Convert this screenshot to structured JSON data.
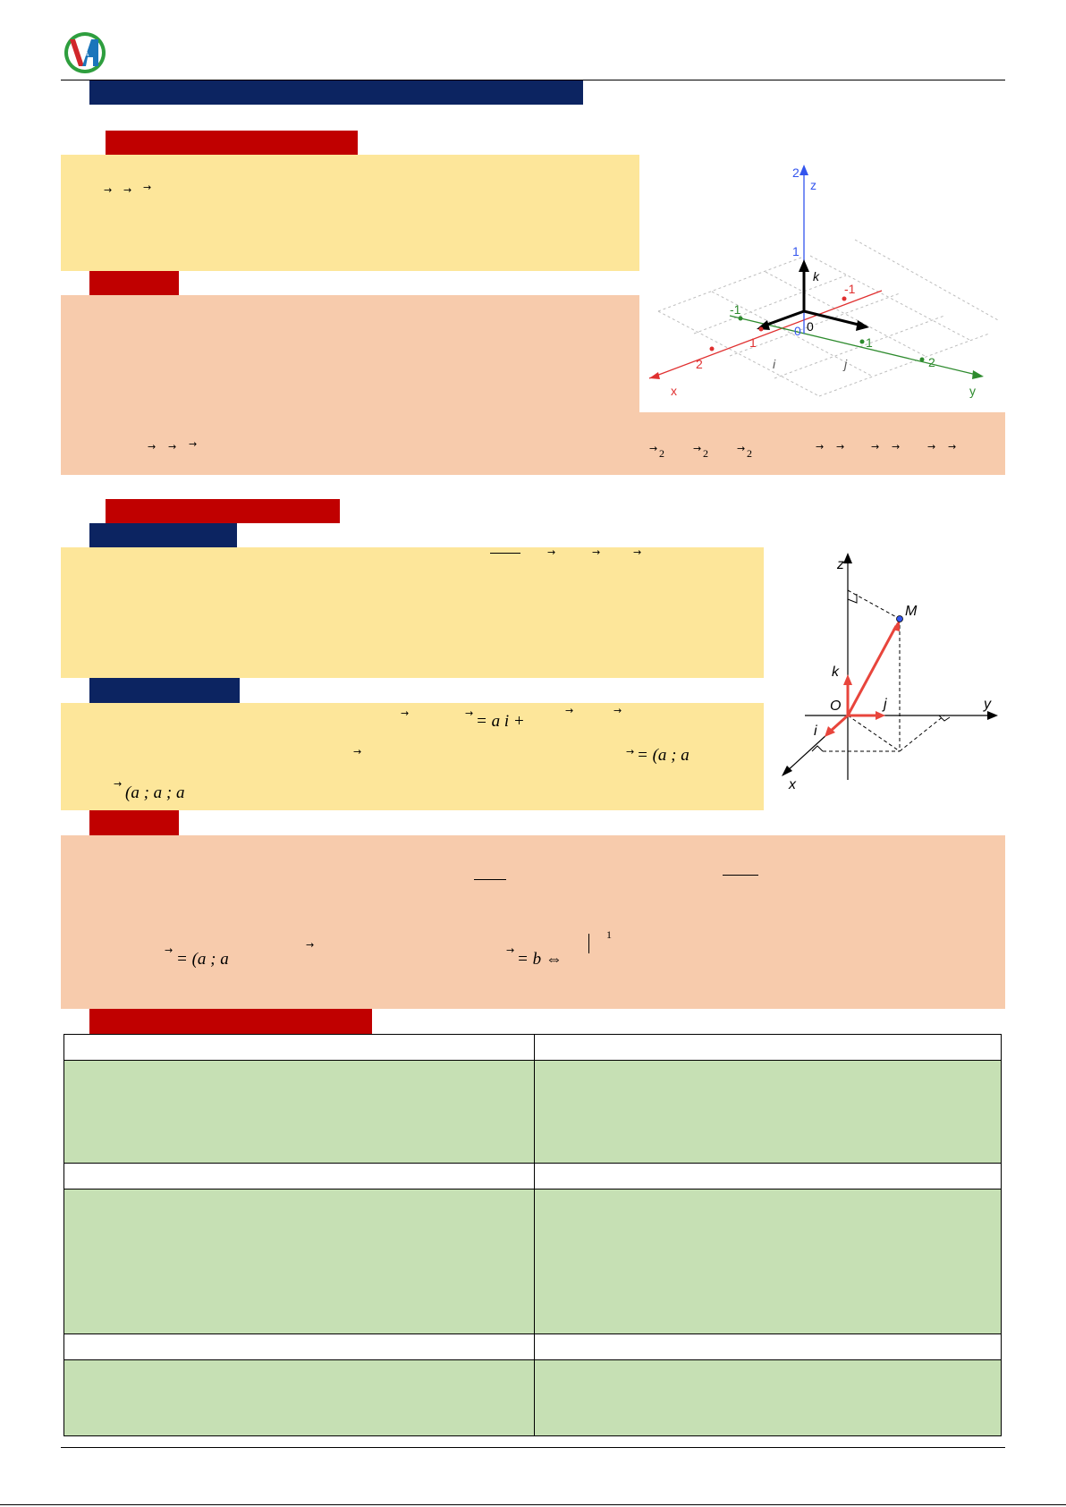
{
  "colors": {
    "navy": "#0c2461",
    "red": "#c00000",
    "yellow": "#fde69a",
    "salmon": "#f7cbac",
    "green": "#c6e0b4"
  },
  "logo": {
    "text": "VA"
  },
  "fig1": {
    "axis_x": "x",
    "axis_y": "y",
    "axis_z": "z",
    "tick_x_neg1": "-1",
    "tick_x_1": "1",
    "tick_x_2": "2",
    "tick_y_neg1": "-1",
    "tick_y_1": "1",
    "tick_y_2": "2",
    "tick_z_1": "1",
    "tick_z_2": "2",
    "origin": "0",
    "vec_i": "i",
    "vec_j": "j",
    "vec_k": "k"
  },
  "fig2": {
    "label_z": "z",
    "label_y": "y",
    "label_x": "x",
    "label_M": "M",
    "label_O": "O",
    "vec_i": "i",
    "vec_j": "j",
    "vec_k": "k"
  },
  "def2_math": {
    "eq_a_i": "= a i +",
    "eq_a_a": "= (a ; a",
    "tuple": "(a ; a ; a"
  },
  "note2_math": {
    "eq_a_a": "= (a ; a",
    "eq_b": "= b ⇔",
    "sup_1": "1"
  },
  "note1_math": {
    "sub2a": "2",
    "sub2b": "2",
    "sub2c": "2"
  }
}
